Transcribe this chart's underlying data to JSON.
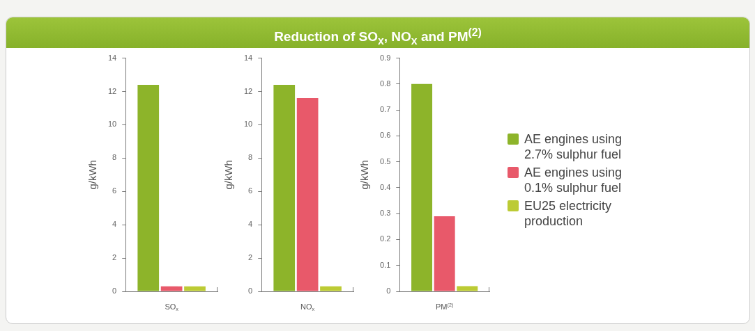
{
  "chart_data": [
    {
      "type": "other",
      "title": "Reduction of SO$_{x}$, NO$_{x}$ and PM$^{(2)}$"
    },
    {
      "type": "bar",
      "ylabel": "g/kWh",
      "categories": [
        "SO$_{x}$"
      ],
      "ylim": [
        0,
        14
      ],
      "yticks": [
        0,
        2,
        4,
        6,
        8,
        10,
        12,
        14
      ],
      "grid": false,
      "legend": false,
      "series": [
        {
          "color": "#8db42a",
          "values": [
            12.4
          ]
        },
        {
          "color": "#e8596a",
          "values": [
            0.3
          ]
        },
        {
          "color": "#bccb34",
          "values": [
            0.3
          ]
        }
      ]
    },
    {
      "type": "bar",
      "ylabel": "g/kWh",
      "categories": [
        "NO$_{x}$"
      ],
      "ylim": [
        0,
        14
      ],
      "yticks": [
        0,
        2,
        4,
        6,
        8,
        10,
        12,
        14
      ],
      "grid": false,
      "legend": false,
      "series": [
        {
          "color": "#8db42a",
          "values": [
            12.4
          ]
        },
        {
          "color": "#e8596a",
          "values": [
            11.6
          ]
        },
        {
          "color": "#bccb34",
          "values": [
            0.3
          ]
        }
      ]
    },
    {
      "type": "bar",
      "ylabel": "g/kWh",
      "categories": [
        "PM$^{(2)}$"
      ],
      "ylim": [
        0,
        0.9
      ],
      "yticks": [
        0,
        0.1,
        0.2,
        0.3,
        0.4,
        0.5,
        0.6,
        0.7,
        0.8,
        0.9
      ],
      "grid": false,
      "legend": "right",
      "series": [
        {
          "name": "AE engines using 2.7% sulphur fuel",
          "color": "#8db42a",
          "values": [
            0.8
          ]
        },
        {
          "name": "AE engines using 0.1% sulphur fuel",
          "color": "#e8596a",
          "values": [
            0.29
          ]
        },
        {
          "name": "EU25 electricity production",
          "color": "#bccb34",
          "values": [
            0.02
          ]
        }
      ]
    }
  ]
}
